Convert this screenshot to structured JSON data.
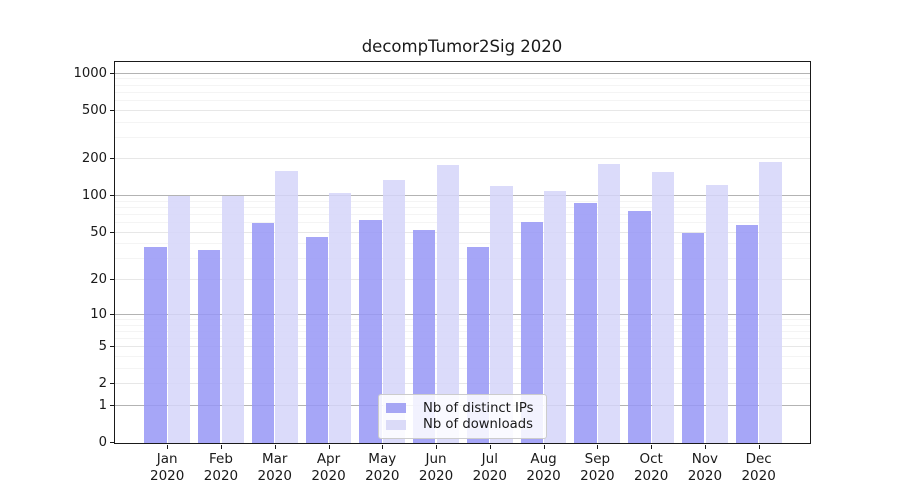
{
  "chart_data": {
    "type": "bar",
    "title": "decompTumor2Sig 2020",
    "categories": [
      "Jan 2020",
      "Feb 2020",
      "Mar 2020",
      "Apr 2020",
      "May 2020",
      "Jun 2020",
      "Jul 2020",
      "Aug 2020",
      "Sep 2020",
      "Oct 2020",
      "Nov 2020",
      "Dec 2020"
    ],
    "series": [
      {
        "name": "Nb of distinct IPs",
        "color": "#9696f6",
        "legend_color": "#a6a6f4",
        "opacity": 0.85,
        "values": [
          38,
          36,
          60,
          46,
          64,
          53,
          38,
          61,
          88,
          76,
          50,
          58
        ]
      },
      {
        "name": "Nb of downloads",
        "color": "#d5d5f9",
        "legend_color": "#dbdbf8",
        "opacity": 0.85,
        "values": [
          100,
          100,
          162,
          106,
          136,
          182,
          122,
          110,
          183,
          157,
          123,
          192
        ]
      }
    ],
    "yscale": "log10(1+x)",
    "ylim": [
      0,
      1200
    ],
    "yticks": [
      0,
      1,
      2,
      5,
      10,
      20,
      50,
      100,
      200,
      500,
      1000
    ],
    "yticks_emphasized": [
      1,
      10,
      100,
      1000
    ],
    "yticks_minor": [
      3,
      4,
      6,
      7,
      8,
      9,
      30,
      40,
      60,
      70,
      80,
      90,
      300,
      400,
      600,
      700,
      800,
      900
    ],
    "grid": true,
    "legend_position": "lower center",
    "xlabel": "",
    "ylabel": ""
  },
  "colors": {
    "background": "#ffffff",
    "spine": "#1a1a1a",
    "grid_major": "#b3b3b3",
    "grid_mid": "#e7e7e7",
    "grid_minor": "#f4f4f4",
    "text": "#1a1a1a",
    "legend_border": "#cccccc"
  }
}
